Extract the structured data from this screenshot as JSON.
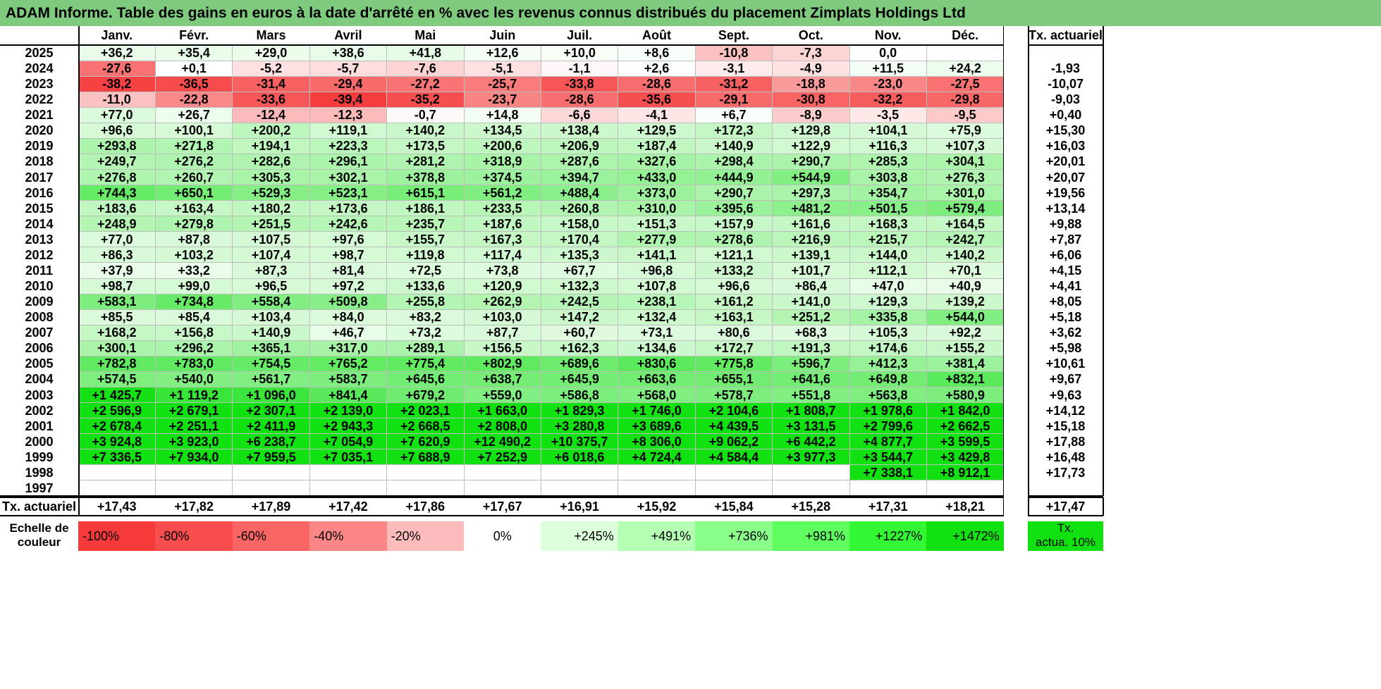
{
  "title": "ADAM Informe. Table des gains en euros à la date d'arrêté en % avec les revenus connus distribués du placement Zimplats Holdings Ltd",
  "chart_data": {
    "type": "table",
    "columns": [
      "Janv.",
      "Févr.",
      "Mars",
      "Avril",
      "Mai",
      "Juin",
      "Juil.",
      "Août",
      "Sept.",
      "Oct.",
      "Nov.",
      "Déc."
    ],
    "annual_header": "Tx. actuariel",
    "rows": [
      {
        "year": "2025",
        "values": [
          "+36,2",
          "+35,4",
          "+29,0",
          "+38,6",
          "+41,8",
          "+12,6",
          "+10,0",
          "+8,6",
          "-10,8",
          "-7,3",
          "0,0",
          ""
        ],
        "annual": ""
      },
      {
        "year": "2024",
        "values": [
          "-27,6",
          "+0,1",
          "-5,2",
          "-5,7",
          "-7,6",
          "-5,1",
          "-1,1",
          "+2,6",
          "-3,1",
          "-4,9",
          "+11,5",
          "+24,2"
        ],
        "annual": "-1,93"
      },
      {
        "year": "2023",
        "values": [
          "-38,2",
          "-36,5",
          "-31,4",
          "-29,4",
          "-27,2",
          "-25,7",
          "-33,8",
          "-28,6",
          "-31,2",
          "-18,8",
          "-23,0",
          "-27,5"
        ],
        "annual": "-10,07"
      },
      {
        "year": "2022",
        "values": [
          "-11,0",
          "-22,8",
          "-33,6",
          "-39,4",
          "-35,2",
          "-23,7",
          "-28,6",
          "-35,6",
          "-29,1",
          "-30,8",
          "-32,2",
          "-29,8"
        ],
        "annual": "-9,03"
      },
      {
        "year": "2021",
        "values": [
          "+77,0",
          "+26,7",
          "-12,4",
          "-12,3",
          "-0,7",
          "+14,8",
          "-6,6",
          "-4,1",
          "+6,7",
          "-8,9",
          "-3,5",
          "-9,5"
        ],
        "annual": "+0,40"
      },
      {
        "year": "2020",
        "values": [
          "+96,6",
          "+100,1",
          "+200,2",
          "+119,1",
          "+140,2",
          "+134,5",
          "+138,4",
          "+129,5",
          "+172,3",
          "+129,8",
          "+104,1",
          "+75,9"
        ],
        "annual": "+15,30"
      },
      {
        "year": "2019",
        "values": [
          "+293,8",
          "+271,8",
          "+194,1",
          "+223,3",
          "+173,5",
          "+200,6",
          "+206,9",
          "+187,4",
          "+140,9",
          "+122,9",
          "+116,3",
          "+107,3"
        ],
        "annual": "+16,03"
      },
      {
        "year": "2018",
        "values": [
          "+249,7",
          "+276,2",
          "+282,6",
          "+296,1",
          "+281,2",
          "+318,9",
          "+287,6",
          "+327,6",
          "+298,4",
          "+290,7",
          "+285,3",
          "+304,1"
        ],
        "annual": "+20,01"
      },
      {
        "year": "2017",
        "values": [
          "+276,8",
          "+260,7",
          "+305,3",
          "+302,1",
          "+378,8",
          "+374,5",
          "+394,7",
          "+433,0",
          "+444,9",
          "+544,9",
          "+303,8",
          "+276,3"
        ],
        "annual": "+20,07"
      },
      {
        "year": "2016",
        "values": [
          "+744,3",
          "+650,1",
          "+529,3",
          "+523,1",
          "+615,1",
          "+561,2",
          "+488,4",
          "+373,0",
          "+290,7",
          "+297,3",
          "+354,7",
          "+301,0"
        ],
        "annual": "+19,56"
      },
      {
        "year": "2015",
        "values": [
          "+183,6",
          "+163,4",
          "+180,2",
          "+173,6",
          "+186,1",
          "+233,5",
          "+260,8",
          "+310,0",
          "+395,6",
          "+481,2",
          "+501,5",
          "+579,4"
        ],
        "annual": "+13,14"
      },
      {
        "year": "2014",
        "values": [
          "+248,9",
          "+279,8",
          "+251,5",
          "+242,6",
          "+235,7",
          "+187,6",
          "+158,0",
          "+151,3",
          "+157,9",
          "+161,6",
          "+168,3",
          "+164,5"
        ],
        "annual": "+9,88"
      },
      {
        "year": "2013",
        "values": [
          "+77,0",
          "+87,8",
          "+107,5",
          "+97,6",
          "+155,7",
          "+167,3",
          "+170,4",
          "+277,9",
          "+278,6",
          "+216,9",
          "+215,7",
          "+242,7"
        ],
        "annual": "+7,87"
      },
      {
        "year": "2012",
        "values": [
          "+86,3",
          "+103,2",
          "+107,4",
          "+98,7",
          "+119,8",
          "+117,4",
          "+135,3",
          "+141,1",
          "+121,1",
          "+139,1",
          "+144,0",
          "+140,2"
        ],
        "annual": "+6,06"
      },
      {
        "year": "2011",
        "values": [
          "+37,9",
          "+33,2",
          "+87,3",
          "+81,4",
          "+72,5",
          "+73,8",
          "+67,7",
          "+96,8",
          "+133,2",
          "+101,7",
          "+112,1",
          "+70,1"
        ],
        "annual": "+4,15"
      },
      {
        "year": "2010",
        "values": [
          "+98,7",
          "+99,0",
          "+96,5",
          "+97,2",
          "+133,6",
          "+120,9",
          "+132,3",
          "+107,8",
          "+96,6",
          "+86,4",
          "+47,0",
          "+40,9"
        ],
        "annual": "+4,41"
      },
      {
        "year": "2009",
        "values": [
          "+583,1",
          "+734,8",
          "+558,4",
          "+509,8",
          "+255,8",
          "+262,9",
          "+242,5",
          "+238,1",
          "+161,2",
          "+141,0",
          "+129,3",
          "+139,2"
        ],
        "annual": "+8,05"
      },
      {
        "year": "2008",
        "values": [
          "+85,5",
          "+85,4",
          "+103,4",
          "+84,0",
          "+83,2",
          "+103,0",
          "+147,2",
          "+132,4",
          "+163,1",
          "+251,2",
          "+335,8",
          "+544,0"
        ],
        "annual": "+5,18"
      },
      {
        "year": "2007",
        "values": [
          "+168,2",
          "+156,8",
          "+140,9",
          "+46,7",
          "+73,2",
          "+87,7",
          "+60,7",
          "+73,1",
          "+80,6",
          "+68,3",
          "+105,3",
          "+92,2"
        ],
        "annual": "+3,62"
      },
      {
        "year": "2006",
        "values": [
          "+300,1",
          "+296,2",
          "+365,1",
          "+317,0",
          "+289,1",
          "+156,5",
          "+162,3",
          "+134,6",
          "+172,7",
          "+191,3",
          "+174,6",
          "+155,2"
        ],
        "annual": "+5,98"
      },
      {
        "year": "2005",
        "values": [
          "+782,8",
          "+783,0",
          "+754,5",
          "+765,2",
          "+775,4",
          "+802,9",
          "+689,6",
          "+830,6",
          "+775,8",
          "+596,7",
          "+412,3",
          "+381,4"
        ],
        "annual": "+10,61"
      },
      {
        "year": "2004",
        "values": [
          "+574,5",
          "+540,0",
          "+561,7",
          "+583,7",
          "+645,6",
          "+638,7",
          "+645,9",
          "+663,6",
          "+655,1",
          "+641,6",
          "+649,8",
          "+832,1"
        ],
        "annual": "+9,67"
      },
      {
        "year": "2003",
        "values": [
          "+1 425,7",
          "+1 119,2",
          "+1 096,0",
          "+841,4",
          "+679,2",
          "+559,0",
          "+586,8",
          "+568,0",
          "+578,7",
          "+551,8",
          "+563,8",
          "+580,9"
        ],
        "annual": "+9,63"
      },
      {
        "year": "2002",
        "values": [
          "+2 596,9",
          "+2 679,1",
          "+2 307,1",
          "+2 139,0",
          "+2 023,1",
          "+1 663,0",
          "+1 829,3",
          "+1 746,0",
          "+2 104,6",
          "+1 808,7",
          "+1 978,6",
          "+1 842,0"
        ],
        "annual": "+14,12"
      },
      {
        "year": "2001",
        "values": [
          "+2 678,4",
          "+2 251,1",
          "+2 411,9",
          "+2 943,3",
          "+2 668,5",
          "+2 808,0",
          "+3 280,8",
          "+3 689,6",
          "+4 439,5",
          "+3 131,5",
          "+2 799,6",
          "+2 662,5"
        ],
        "annual": "+15,18"
      },
      {
        "year": "2000",
        "values": [
          "+3 924,8",
          "+3 923,0",
          "+6 238,7",
          "+7 054,9",
          "+7 620,9",
          "+12 490,2",
          "+10 375,7",
          "+8 306,0",
          "+9 062,2",
          "+6 442,2",
          "+4 877,7",
          "+3 599,5"
        ],
        "annual": "+17,88"
      },
      {
        "year": "1999",
        "values": [
          "+7 336,5",
          "+7 934,0",
          "+7 959,5",
          "+7 035,1",
          "+7 688,9",
          "+7 252,9",
          "+6 018,6",
          "+4 724,4",
          "+4 584,4",
          "+3 977,3",
          "+3 544,7",
          "+3 429,8"
        ],
        "annual": "+16,48"
      },
      {
        "year": "1998",
        "values": [
          "",
          "",
          "",
          "",
          "",
          "",
          "",
          "",
          "",
          "",
          "+7 338,1",
          "+8 912,1"
        ],
        "annual": "+17,73"
      },
      {
        "year": "1997",
        "values": [
          "",
          "",
          "",
          "",
          "",
          "",
          "",
          "",
          "",
          "",
          "",
          ""
        ],
        "annual": ""
      }
    ],
    "footer": {
      "label": "Tx. actuariel",
      "values": [
        "+17,43",
        "+17,82",
        "+17,89",
        "+17,42",
        "+17,86",
        "+17,67",
        "+16,91",
        "+15,92",
        "+15,84",
        "+15,28",
        "+17,31",
        "+18,21"
      ],
      "annual": "+17,47"
    },
    "scale": {
      "label_line1": "Echelle de",
      "label_line2": "couleur",
      "steps": [
        {
          "label": "-100%",
          "color": "#f63a3a"
        },
        {
          "label": "-80%",
          "color": "#f84d4d"
        },
        {
          "label": "-60%",
          "color": "#f96565"
        },
        {
          "label": "-40%",
          "color": "#fb8686"
        },
        {
          "label": "-20%",
          "color": "#fdbcbc"
        },
        {
          "label": "0%",
          "color": "#ffffff"
        },
        {
          "label": "+245%",
          "color": "#dcffdc"
        },
        {
          "label": "+491%",
          "color": "#b4ffb4"
        },
        {
          "label": "+736%",
          "color": "#8aff8a"
        },
        {
          "label": "+981%",
          "color": "#5eff5e"
        },
        {
          "label": "+1227%",
          "color": "#33f833"
        },
        {
          "label": "+1472%",
          "color": "#11e011"
        }
      ],
      "annual_line1": "Tx.",
      "annual_line2": "actua. 10%",
      "annual_color": "#11e011"
    },
    "colors": {
      "title_bg": "#7ecb7e",
      "neg_max": "#f63a3a",
      "pos_max": "#11e011",
      "neutral": "#ffffff"
    }
  }
}
